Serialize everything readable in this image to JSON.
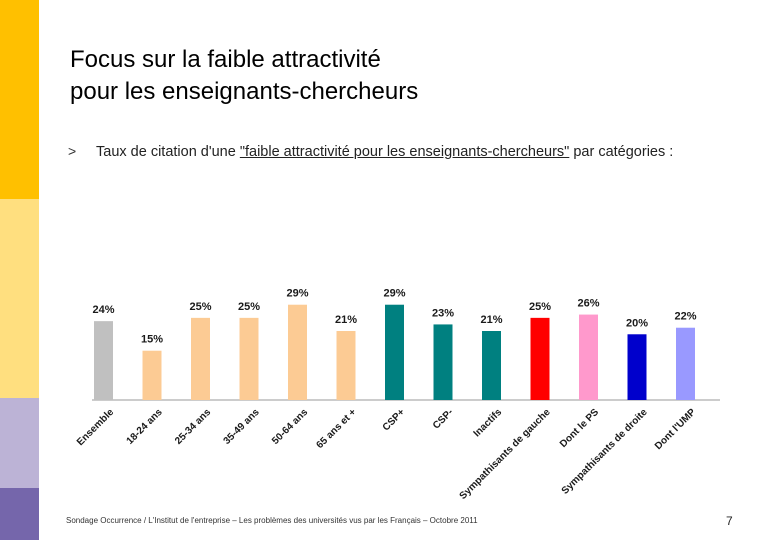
{
  "title": {
    "line1": "Focus sur la faible attractivité",
    "line2": "pour les enseignants-chercheurs"
  },
  "bullet": {
    "marker": ">",
    "text_before": "Taux de citation d'une ",
    "emphasis": "\"faible attractivité pour les enseignants-chercheurs\"",
    "text_after": " par catégories :"
  },
  "chart_data": {
    "type": "bar",
    "title": "",
    "xlabel": "",
    "ylabel": "",
    "ylim": [
      0,
      35
    ],
    "unit": "%",
    "categories": [
      "Ensemble",
      "18-24 ans",
      "25-34 ans",
      "35-49 ans",
      "50-64 ans",
      "65 ans et +",
      "CSP+",
      "CSP-",
      "Inactifs",
      "Sympathisants de gauche",
      "Dont le PS",
      "Sympathisants de droite",
      "Dont l'UMP"
    ],
    "values": [
      24,
      15,
      25,
      25,
      29,
      21,
      29,
      23,
      21,
      25,
      26,
      20,
      22
    ],
    "labels": [
      "24%",
      "15%",
      "25%",
      "25%",
      "29%",
      "21%",
      "29%",
      "23%",
      "21%",
      "25%",
      "26%",
      "20%",
      "22%"
    ],
    "colors": [
      "#c0c0c0",
      "#fccb94",
      "#fccb94",
      "#fccb94",
      "#fccb94",
      "#fccb94",
      "#008080",
      "#008080",
      "#008080",
      "#ff0000",
      "#ff99cc",
      "#0000cc",
      "#9999ff"
    ]
  },
  "footer": {
    "source": "Sondage Occurrence / L'Institut de l'entreprise – Les problèmes des universités vus par les Français – Octobre 2011",
    "page_number": "7"
  }
}
